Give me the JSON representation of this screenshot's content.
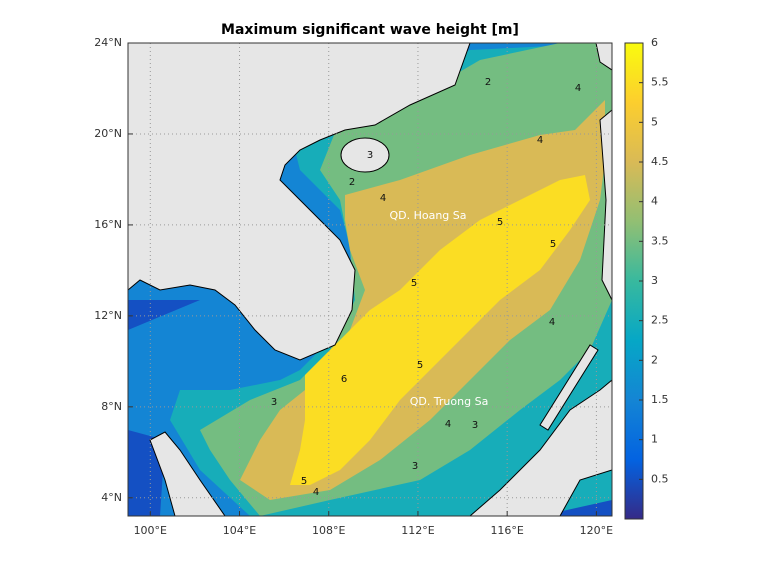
{
  "map": {
    "title": "Maximum significant wave height [m]",
    "xlim": [
      99,
      120.7
    ],
    "ylim": [
      3.2,
      24
    ],
    "xticks": [
      {
        "value": 100,
        "label": "100°E"
      },
      {
        "value": 104,
        "label": "104°E"
      },
      {
        "value": 108,
        "label": "108°E"
      },
      {
        "value": 112,
        "label": "112°E"
      },
      {
        "value": 116,
        "label": "116°E"
      },
      {
        "value": 120,
        "label": "120°E"
      }
    ],
    "yticks": [
      {
        "value": 4,
        "label": "4°N"
      },
      {
        "value": 8,
        "label": "8°N"
      },
      {
        "value": 12,
        "label": "12°N"
      },
      {
        "value": 16,
        "label": "16°N"
      },
      {
        "value": 20,
        "label": "20°N"
      },
      {
        "value": 24,
        "label": "24°N"
      }
    ],
    "grid": true,
    "colorbar": {
      "clim": [
        0,
        6
      ],
      "ticks": [
        0.5,
        1,
        1.5,
        2,
        2.5,
        3,
        3.5,
        4,
        4.5,
        5,
        5.5,
        6
      ],
      "colormap": [
        "#352a87",
        "#0363e1",
        "#1485d4",
        "#06a7c6",
        "#38b99e",
        "#92bf73",
        "#d9ba56",
        "#fcce2e",
        "#f9fb0e"
      ]
    },
    "fill_levels": [
      0.5,
      1.5,
      2.5,
      3.5,
      4.5,
      5.5
    ],
    "land_color": "#e6e6e6",
    "annotations": [
      "QD. Hoang Sa",
      "QD. Truong Sa"
    ],
    "contour_labels": [
      2,
      4,
      4,
      3,
      2,
      4,
      5,
      5,
      5,
      4,
      6,
      5,
      4,
      3,
      3,
      5,
      4,
      3
    ]
  }
}
